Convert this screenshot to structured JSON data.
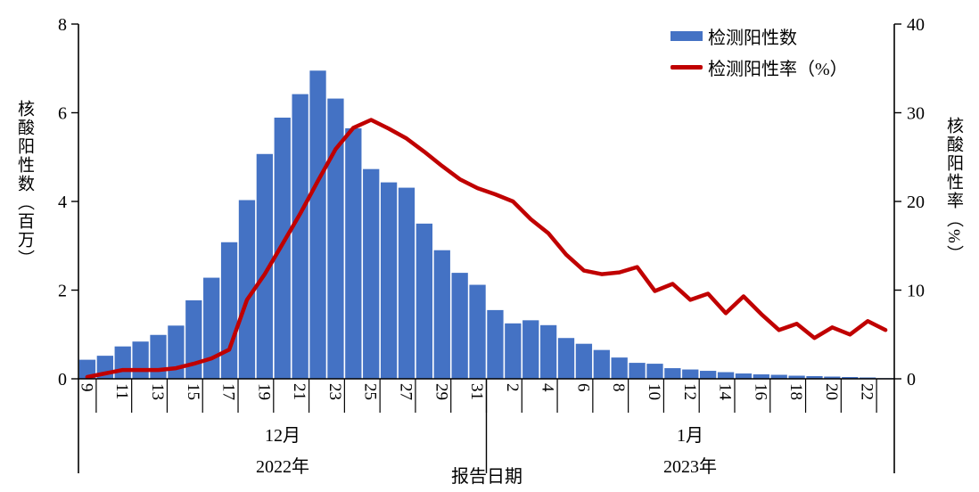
{
  "legend": {
    "bar_label": "检测阳性数",
    "line_label": "检测阳性率（%）"
  },
  "axes": {
    "left_title": "核酸阳性数（百万）",
    "right_title": "核酸阳性率（%）",
    "x_title": "报告日期",
    "left_ticks": [
      "0",
      "2",
      "4",
      "6",
      "8"
    ],
    "right_ticks": [
      "0",
      "10",
      "20",
      "30",
      "40"
    ],
    "month_labels": [
      {
        "label": "12月",
        "year": "2022年"
      },
      {
        "label": "1月",
        "year": "2023年"
      }
    ]
  },
  "colors": {
    "bar": "#4472C4",
    "line": "#C00000",
    "axis": "#000000"
  },
  "chart_data": {
    "type": "bar+line",
    "title": "",
    "xlabel": "报告日期",
    "ylabel_left": "核酸阳性数（百万）",
    "ylabel_right": "核酸阳性率（%）",
    "grid": false,
    "legend_position": "top-right",
    "left_axis": {
      "min": 0,
      "max": 8,
      "step": 2
    },
    "right_axis": {
      "min": 0,
      "max": 40,
      "step": 10
    },
    "categories": [
      "12-9",
      "12-10",
      "12-11",
      "12-12",
      "12-13",
      "12-14",
      "12-15",
      "12-16",
      "12-17",
      "12-18",
      "12-19",
      "12-20",
      "12-21",
      "12-22",
      "12-23",
      "12-24",
      "12-25",
      "12-26",
      "12-27",
      "12-28",
      "12-29",
      "12-30",
      "12-31",
      "1-1",
      "1-2",
      "1-3",
      "1-4",
      "1-5",
      "1-6",
      "1-7",
      "1-8",
      "1-9",
      "1-10",
      "1-11",
      "1-12",
      "1-13",
      "1-14",
      "1-15",
      "1-16",
      "1-17",
      "1-18",
      "1-19",
      "1-20",
      "1-21",
      "1-22",
      "1-23"
    ],
    "x_tick_labels": [
      "9",
      "",
      "11",
      "",
      "13",
      "",
      "15",
      "",
      "17",
      "",
      "19",
      "",
      "21",
      "",
      "23",
      "",
      "25",
      "",
      "27",
      "",
      "29",
      "",
      "31",
      "",
      "2",
      "",
      "4",
      "",
      "6",
      "",
      "8",
      "",
      "10",
      "",
      "12",
      "",
      "14",
      "",
      "16",
      "",
      "18",
      "",
      "20",
      "",
      "22",
      ""
    ],
    "series": [
      {
        "name": "检测阳性数",
        "type": "bar",
        "axis": "left",
        "color": "#4472C4",
        "values": [
          0.43,
          0.52,
          0.73,
          0.84,
          0.99,
          1.2,
          1.77,
          2.28,
          3.08,
          4.03,
          5.07,
          5.89,
          6.42,
          6.95,
          6.32,
          5.65,
          4.73,
          4.43,
          4.31,
          3.5,
          2.9,
          2.39,
          2.12,
          1.55,
          1.25,
          1.32,
          1.21,
          0.92,
          0.79,
          0.65,
          0.48,
          0.36,
          0.34,
          0.24,
          0.21,
          0.18,
          0.15,
          0.12,
          0.1,
          0.09,
          0.07,
          0.06,
          0.05,
          0.04,
          0.03,
          0.015
        ]
      },
      {
        "name": "检测阳性率（%）",
        "type": "line",
        "axis": "right",
        "color": "#C00000",
        "values": [
          0.2,
          0.6,
          1.0,
          1.0,
          1.0,
          1.2,
          1.7,
          2.3,
          3.3,
          8.9,
          11.8,
          15.2,
          18.6,
          22.3,
          25.9,
          28.3,
          29.2,
          28.2,
          27.1,
          25.6,
          24.0,
          22.5,
          21.5,
          20.8,
          20.0,
          18.0,
          16.4,
          14.0,
          12.2,
          11.8,
          12.0,
          12.6,
          9.9,
          10.7,
          8.9,
          9.6,
          7.4,
          9.3,
          7.3,
          5.5,
          6.2,
          4.6,
          5.8,
          5.0,
          6.5,
          5.5
        ]
      }
    ]
  }
}
